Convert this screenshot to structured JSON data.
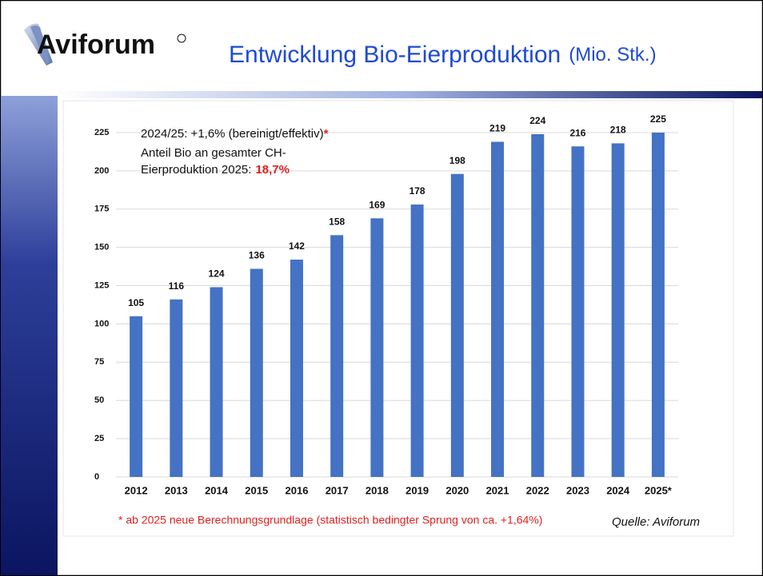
{
  "logo": "Aviforum",
  "title": "Entwicklung Bio-Eierproduktion",
  "title_unit": "(Mio. Stk.)",
  "chart_data": {
    "type": "bar",
    "categories": [
      "2012",
      "2013",
      "2014",
      "2015",
      "2016",
      "2017",
      "2018",
      "2019",
      "2020",
      "2021",
      "2022",
      "2023",
      "2024",
      "2025*"
    ],
    "values": [
      105,
      116,
      124,
      136,
      142,
      158,
      169,
      178,
      198,
      219,
      224,
      216,
      218,
      225
    ],
    "color": "#4472c4",
    "ylim": [
      0,
      225
    ],
    "yticks": [
      0,
      25,
      50,
      75,
      100,
      125,
      150,
      175,
      200,
      225
    ],
    "grid": true,
    "annotation": {
      "line1": "2024/25: +1,6% (bereinigt/effektiv)",
      "line1_mark": "*",
      "line2": "Anteil Bio an gesamter CH-",
      "line3": "Eierproduktion 2025:",
      "line3_highlight": "18,7%"
    },
    "footnote": "* ab 2025 neue Berechnungsgrundlage (statistisch bedingter Sprung von ca. +1,64%)",
    "source": "Quelle: Aviforum"
  }
}
